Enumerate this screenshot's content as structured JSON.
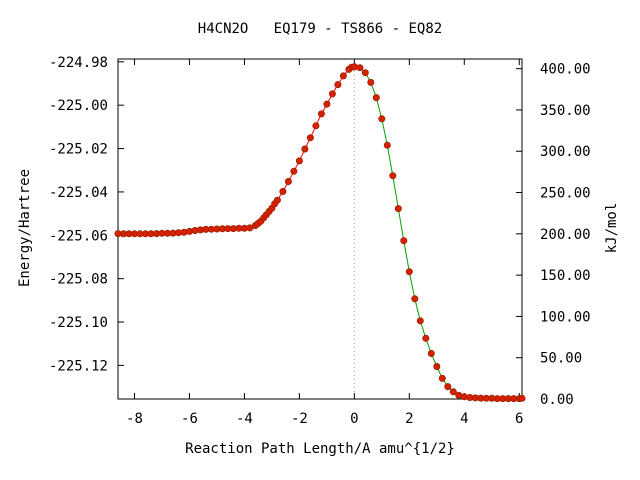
{
  "chart_data": {
    "type": "line",
    "title": "H4CN2O   EQ179 - TS866 - EQ82",
    "xlabel": "Reaction Path Length/A amu^{1/2}",
    "ylabel": "Energy/Hartree",
    "y2label": "kJ/mol",
    "xlim": [
      -8.6,
      6.1
    ],
    "ylim": [
      -225.1355,
      -224.9787
    ],
    "y2lim": [
      0.0,
      411.7
    ],
    "xticks": [
      "-8",
      "-6",
      "-4",
      "-2",
      "0",
      "2",
      "4",
      "6"
    ],
    "xtick_values": [
      -8,
      -6,
      -4,
      -2,
      0,
      2,
      4,
      6
    ],
    "yticks": [
      "-224.98",
      "-225.00",
      "-225.02",
      "-225.04",
      "-225.06",
      "-225.08",
      "-225.10",
      "-225.12"
    ],
    "ytick_values": [
      -224.98,
      -225.0,
      -225.02,
      -225.04,
      -225.06,
      -225.08,
      -225.1,
      -225.12
    ],
    "y2ticks": [
      "400.00",
      "350.00",
      "300.00",
      "250.00",
      "200.00",
      "150.00",
      "100.00",
      "50.00",
      "0.00"
    ],
    "y2tick_values": [
      400,
      350,
      300,
      250,
      200,
      150,
      100,
      50,
      0
    ],
    "ts_line_x": 0,
    "series": [
      {
        "color": "#ff0000",
        "x": [
          -8.6,
          -8.4,
          -8.2,
          -8.0,
          -7.8,
          -7.6,
          -7.4,
          -7.2,
          -7.0,
          -6.8,
          -6.6,
          -6.4,
          -6.2,
          -6.0,
          -5.8,
          -5.6,
          -5.4,
          -5.2,
          -5.0,
          -4.8,
          -4.6,
          -4.4,
          -4.2,
          -4.0,
          -3.8,
          -3.6,
          -3.5,
          -3.4,
          -3.3,
          -3.2,
          -3.1,
          -3.0,
          -2.9,
          -2.8,
          -2.6,
          -2.4,
          -2.2,
          -2.0,
          -1.8,
          -1.6,
          -1.4,
          -1.2,
          -1.0,
          -0.8,
          -0.6,
          -0.4,
          -0.2,
          -0.1,
          0.0
        ],
        "y": [
          -225.0592,
          -225.0593,
          -225.0593,
          -225.0593,
          -225.0593,
          -225.0593,
          -225.0593,
          -225.0592,
          -225.0591,
          -225.0591,
          -225.059,
          -225.0588,
          -225.0586,
          -225.0582,
          -225.0578,
          -225.0575,
          -225.0573,
          -225.0572,
          -225.0571,
          -225.057,
          -225.0569,
          -225.0569,
          -225.0568,
          -225.0568,
          -225.0566,
          -225.0555,
          -225.0545,
          -225.0535,
          -225.052,
          -225.0505,
          -225.049,
          -225.0475,
          -225.0455,
          -225.0438,
          -225.0398,
          -225.0352,
          -225.0305,
          -225.0257,
          -225.0202,
          -225.015,
          -225.0095,
          -225.004,
          -224.9995,
          -224.9948,
          -224.9905,
          -224.9865,
          -224.9835,
          -224.9825,
          -224.9823
        ]
      },
      {
        "color": "#00a000",
        "x": [
          0.0,
          0.2,
          0.4,
          0.6,
          0.8,
          1.0,
          1.2,
          1.4,
          1.6,
          1.8,
          2.0,
          2.2,
          2.4,
          2.6,
          2.8,
          3.0,
          3.2,
          3.4,
          3.6,
          3.8,
          4.0,
          4.2,
          4.4,
          4.6,
          4.8,
          5.0,
          5.2,
          5.4,
          5.6,
          5.8,
          6.0,
          6.1
        ],
        "y": [
          -224.9823,
          -224.9827,
          -224.985,
          -224.9895,
          -224.9965,
          -225.0063,
          -225.0185,
          -225.0325,
          -225.0477,
          -225.0625,
          -225.0768,
          -225.0893,
          -225.0995,
          -225.1075,
          -225.1145,
          -225.1205,
          -225.126,
          -225.1298,
          -225.1322,
          -225.1338,
          -225.1345,
          -225.1348,
          -225.135,
          -225.1351,
          -225.1352,
          -225.1352,
          -225.1353,
          -225.1353,
          -225.1353,
          -225.1353,
          -225.1353,
          -225.1352
        ]
      }
    ]
  }
}
